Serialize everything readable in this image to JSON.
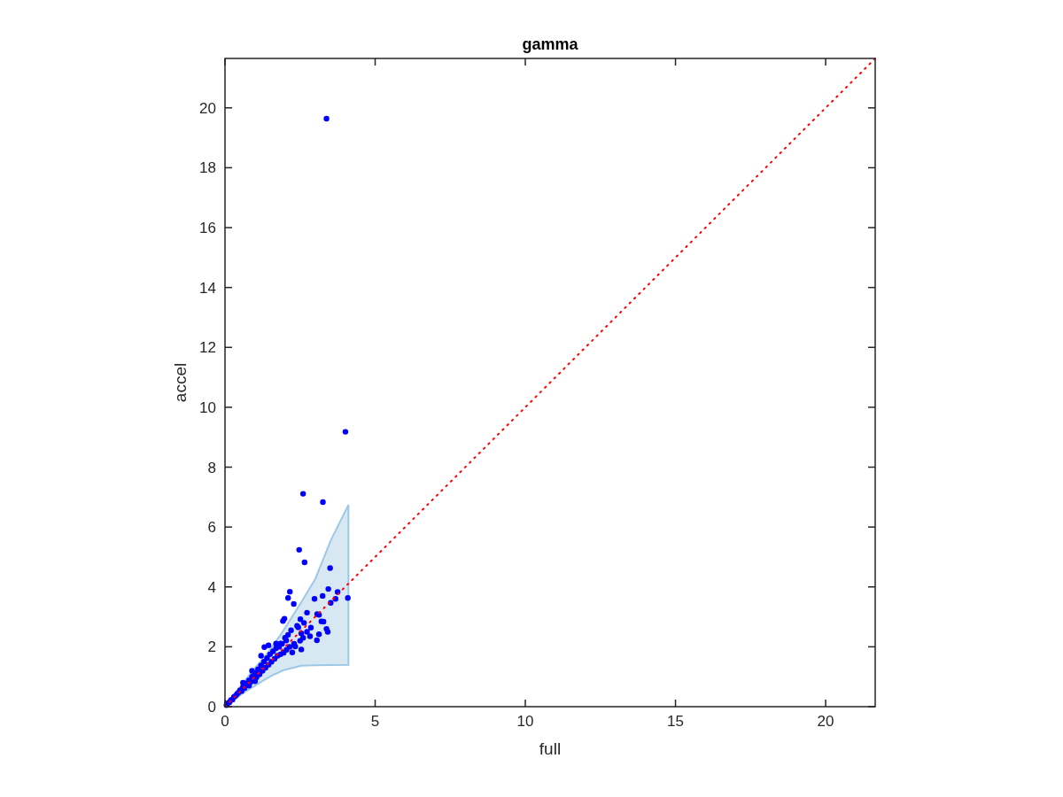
{
  "chart_data": {
    "type": "scatter",
    "title": "gamma",
    "xlabel": "full",
    "ylabel": "accel",
    "xlim": [
      0,
      21.65
    ],
    "ylim": [
      0,
      21.65
    ],
    "xticks": [
      0,
      5,
      10,
      15,
      20
    ],
    "yticks": [
      0,
      2,
      4,
      6,
      8,
      10,
      12,
      14,
      16,
      18,
      20
    ],
    "grid": false,
    "series": [
      {
        "color": "#0000ff",
        "marker": "circle",
        "x": [
          3.38,
          4.01,
          2.6,
          3.26,
          2.47,
          2.65,
          3.5,
          3.44,
          2.16,
          2.1,
          2.29,
          3.75,
          4.09,
          3.25,
          2.98,
          3.52,
          3.68,
          2.73,
          3.07,
          3.13,
          1.98,
          1.93,
          3.21,
          3.28,
          3.38,
          3.42,
          2.86,
          3.13,
          3.06,
          2.83,
          2.54,
          2.63,
          2.44,
          2.51,
          2.73,
          2.54,
          2.34,
          2.24,
          2.04,
          1.85,
          1.31,
          1.45,
          1.7,
          0.05,
          0.1,
          0.15,
          0.2,
          0.25,
          0.3,
          0.35,
          0.4,
          0.45,
          0.5,
          0.55,
          0.6,
          0.65,
          0.7,
          0.8,
          0.85,
          0.9,
          1.0,
          1.05,
          1.1,
          1.15,
          1.2,
          1.25,
          1.3,
          1.35,
          1.4,
          1.45,
          1.5,
          1.55,
          1.6,
          1.65,
          1.7,
          1.75,
          1.8,
          1.85,
          1.9,
          1.95,
          2.0,
          2.05,
          2.1,
          2.15,
          2.2,
          2.3,
          2.4,
          2.5,
          2.6,
          0.6,
          0.9,
          1.2,
          1.0,
          0.8
        ],
        "values": [
          19.64,
          9.18,
          7.11,
          6.83,
          5.24,
          4.82,
          4.63,
          3.93,
          3.84,
          3.63,
          3.43,
          3.83,
          3.63,
          3.7,
          3.6,
          3.47,
          3.6,
          3.14,
          3.09,
          3.07,
          2.94,
          2.86,
          2.85,
          2.84,
          2.6,
          2.5,
          2.64,
          2.42,
          2.22,
          2.35,
          2.45,
          2.8,
          2.65,
          2.92,
          2.5,
          1.91,
          2.01,
          1.81,
          2.21,
          2.11,
          1.99,
          2.05,
          2.11,
          0.05,
          0.12,
          0.15,
          0.22,
          0.24,
          0.33,
          0.36,
          0.42,
          0.47,
          0.55,
          0.52,
          0.65,
          0.62,
          0.78,
          0.88,
          0.82,
          1.0,
          1.12,
          0.98,
          1.25,
          1.08,
          1.38,
          1.2,
          1.5,
          1.3,
          1.62,
          1.4,
          1.75,
          1.5,
          1.85,
          1.6,
          1.95,
          1.7,
          2.0,
          1.75,
          2.1,
          1.8,
          2.3,
          1.9,
          2.4,
          2.0,
          2.55,
          2.1,
          2.7,
          2.2,
          2.3,
          0.8,
          1.2,
          1.7,
          0.85,
          0.7
        ]
      },
      {
        "type": "line",
        "color": "#ff0000",
        "line_style": "dotted",
        "marker": "none",
        "x": [
          0,
          21.65
        ],
        "values": [
          0,
          21.65
        ]
      },
      {
        "type": "line",
        "color": "#9cc8e6",
        "x": [
          0,
          0.57,
          1.0,
          1.36,
          1.65,
          1.95,
          2.54,
          3.0,
          3.52,
          4.11
        ],
        "values": [
          null,
          null,
          null,
          null,
          null,
          null,
          null,
          null,
          null,
          null
        ],
        "lower": [
          0,
          0.43,
          0.7,
          0.93,
          1.08,
          1.22,
          1.37,
          1.38,
          1.39,
          1.4
        ],
        "upper": [
          0,
          0.75,
          1.3,
          1.72,
          2.11,
          2.55,
          3.49,
          4.25,
          5.55,
          6.74
        ]
      }
    ]
  }
}
